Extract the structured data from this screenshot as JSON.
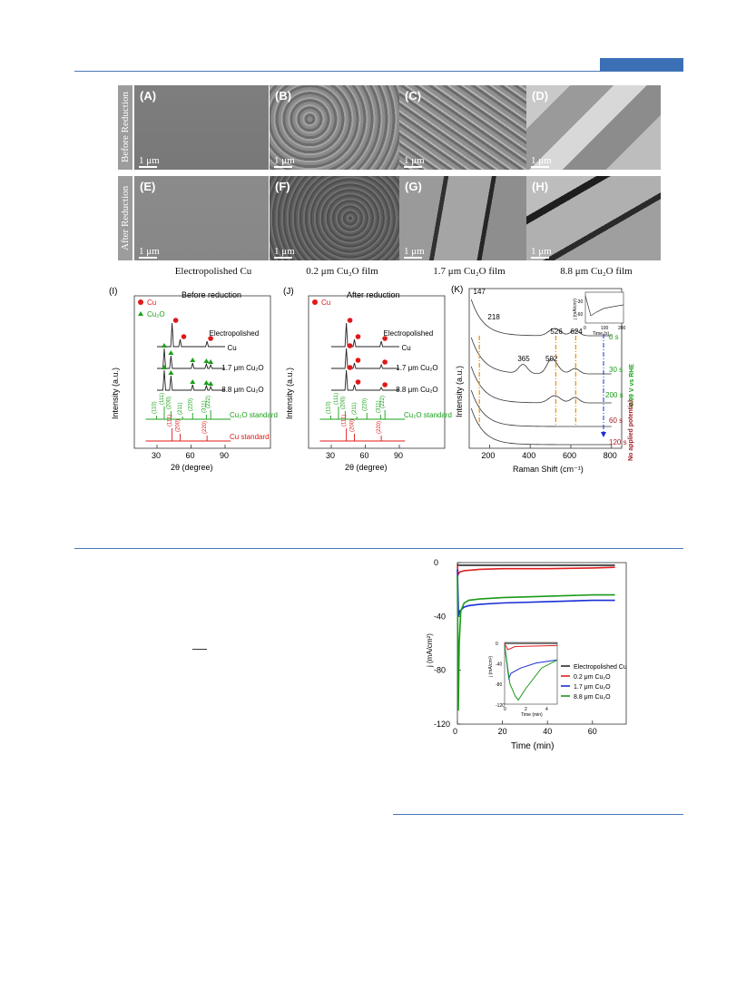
{
  "sem_panels": {
    "row_labels": [
      "Before Reduction",
      "After Reduction"
    ],
    "panels": [
      {
        "id": "(A)",
        "scale": "1 μm"
      },
      {
        "id": "(B)",
        "scale": "1 μm"
      },
      {
        "id": "(C)",
        "scale": "1 μm"
      },
      {
        "id": "(D)",
        "scale": "1 μm"
      },
      {
        "id": "(E)",
        "scale": "1 μm"
      },
      {
        "id": "(F)",
        "scale": "1 μm"
      },
      {
        "id": "(G)",
        "scale": "1 μm"
      },
      {
        "id": "(H)",
        "scale": "1 μm"
      }
    ],
    "columns": [
      "Electropolished Cu",
      "0.2 μm Cu₂O film",
      "1.7 μm Cu₂O film",
      "8.8 μm Cu₂O film"
    ]
  },
  "chart_data": [
    {
      "panel": "(I)",
      "type": "line",
      "title": "Before reduction",
      "xlabel": "2θ (degree)",
      "ylabel": "Intensity (a.u.)",
      "xticks": [
        "30",
        "60",
        "90"
      ],
      "legend": [
        "Cu",
        "Cu₂O"
      ],
      "traces": [
        "Electropolished Cu",
        "1.7 μm Cu₂O",
        "8.8 μm Cu₂O",
        "Cu₂O standard",
        "Cu standard"
      ],
      "cu2o_hkl": [
        "(110)",
        "(111)",
        "(200)",
        "(211)",
        "(220)",
        "(311)",
        "(222)"
      ],
      "cu_hkl": [
        "(111)",
        "(200)",
        "(220)"
      ]
    },
    {
      "panel": "(J)",
      "type": "line",
      "title": "After reduction",
      "xlabel": "2θ (degree)",
      "ylabel": "Intensity (a.u.)",
      "xticks": [
        "30",
        "60",
        "90"
      ],
      "legend": [
        "Cu"
      ],
      "traces": [
        "Electropolished Cu",
        "1.7 μm Cu₂O",
        "8.8 μm Cu₂O",
        "Cu₂O standard"
      ],
      "cu2o_hkl": [
        "(110)",
        "(111)",
        "(200)",
        "(211)",
        "(220)",
        "(311)",
        "(222)"
      ],
      "cu_hkl": [
        "(111)",
        "(200)",
        "(220)"
      ]
    },
    {
      "panel": "(K)",
      "type": "line",
      "xlabel": "Raman Shift (cm⁻¹)",
      "ylabel": "Intensity (a.u.)",
      "xticks": [
        "200",
        "400",
        "600",
        "800"
      ],
      "peak_labels": [
        "147",
        "218",
        "365",
        "502",
        "526",
        "624"
      ],
      "time_labels": [
        "0 s",
        "30 s",
        "200 s",
        "60 s",
        "120 s"
      ],
      "side_labels": [
        "-0.99 V vs RHE",
        "No applied potential"
      ],
      "inset": {
        "ylabel": "j (mA/cm²)",
        "xlabel": "Time (s)",
        "yticks": [
          "-30",
          "-60"
        ],
        "xticks": [
          "0",
          "100",
          "200"
        ]
      }
    },
    {
      "panel": "j-t",
      "type": "line",
      "xlabel": "Time (min)",
      "ylabel": "j (mA/cm²)",
      "xlim": [
        0,
        75
      ],
      "ylim": [
        -120,
        0
      ],
      "xticks": [
        "0",
        "20",
        "40",
        "60"
      ],
      "yticks": [
        "0",
        "-40",
        "-80",
        "-120"
      ],
      "series": [
        {
          "name": "Electropolished Cu",
          "color": "#2b2b2b",
          "x": [
            0,
            0.3,
            1,
            5,
            20,
            40,
            70
          ],
          "y": [
            -1,
            -2,
            -2,
            -2,
            -2,
            -2,
            -2
          ]
        },
        {
          "name": "0.2 μm Cu₂O",
          "color": "#e02020",
          "x": [
            0,
            0.3,
            1,
            3,
            10,
            20,
            40,
            60,
            70
          ],
          "y": [
            -2,
            -9,
            -7,
            -6,
            -5,
            -4.5,
            -4.5,
            -4,
            -3.5
          ]
        },
        {
          "name": "1.7 μm Cu₂O",
          "color": "#1a2fd6",
          "x": [
            0,
            0.5,
            1,
            3,
            5,
            10,
            20,
            40,
            60,
            70
          ],
          "y": [
            -5,
            -40,
            -36,
            -33,
            -32,
            -31,
            -30,
            -29,
            -28,
            -28
          ]
        },
        {
          "name": "8.8 μm Cu₂O",
          "color": "#1a9a1a",
          "x": [
            0,
            0.4,
            0.8,
            1.5,
            3,
            5,
            10,
            20,
            40,
            60,
            70
          ],
          "y": [
            -10,
            -110,
            -60,
            -36,
            -30,
            -28,
            -27,
            -26,
            -25,
            -24,
            -24
          ]
        }
      ],
      "inset": {
        "ylabel": "j (mA/cm²)",
        "xlabel": "Time (min)",
        "yticks": [
          "0",
          "-40",
          "-80",
          "-120"
        ],
        "xticks": [
          "0",
          "2",
          "4"
        ]
      }
    }
  ],
  "captions": {
    "jt_legend": [
      "Electropolished Cu",
      "0.2 μm Cu₂O",
      "1.7 μm Cu₂O",
      "8.8 μm Cu₂O"
    ]
  }
}
